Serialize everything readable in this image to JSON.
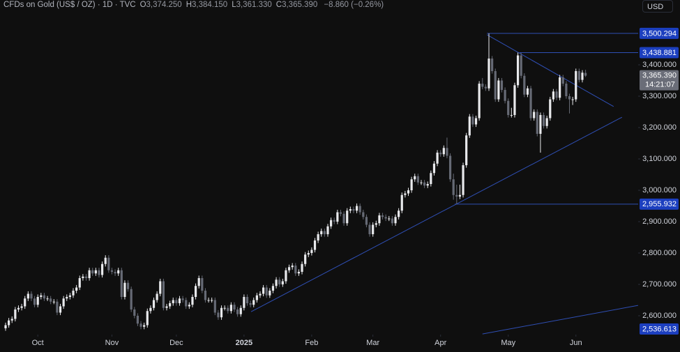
{
  "chart_data": {
    "type": "candlestick",
    "title": "CFDs on Gold (US$ / OZ) · 1D · TVC",
    "legend_values": [
      {
        "key": "O",
        "value": "3,374.250"
      },
      {
        "key": "H",
        "value": "3,384.150"
      },
      {
        "key": "L",
        "value": "3,361.330"
      },
      {
        "key": "C",
        "value": "3,365.390"
      }
    ],
    "change": "−8.860 (−0.26%)",
    "currency": "USD",
    "up_color": "#e8e9ec",
    "down_color": "#666a75",
    "line_color": "#2f4fb5",
    "badge_color": "#1c3fbf",
    "last_badge_color": "#6a6d78",
    "grid": false,
    "xlim": [
      -1.73,
      196.32
    ],
    "ylim": [
      2540,
      3606.7
    ],
    "xticks": [
      {
        "value": 10,
        "label": "Oct"
      },
      {
        "value": 33,
        "label": "Nov"
      },
      {
        "value": 53,
        "label": "Dec"
      },
      {
        "value": 74,
        "label": "2025"
      },
      {
        "value": 95,
        "label": "Feb"
      },
      {
        "value": 114,
        "label": "Mar"
      },
      {
        "value": 135,
        "label": "Apr"
      },
      {
        "value": 156,
        "label": "May"
      },
      {
        "value": 177,
        "label": "Jun"
      }
    ],
    "yticks": [
      {
        "value": 2600,
        "label": "2,600.000"
      },
      {
        "value": 2700,
        "label": "2,700.000"
      },
      {
        "value": 2800,
        "label": "2,800.000"
      },
      {
        "value": 2900,
        "label": "2,900.000"
      },
      {
        "value": 3000,
        "label": "3,000.000"
      },
      {
        "value": 3100,
        "label": "3,100.000"
      },
      {
        "value": 3200,
        "label": "3,200.000"
      },
      {
        "value": 3300,
        "label": "3,300.000"
      },
      {
        "value": 3400,
        "label": "3,400.000"
      }
    ],
    "levels": [
      {
        "value": 3500.294,
        "label": "3,500.294",
        "from": 149.4
      },
      {
        "value": 3438.881,
        "label": "3,438.881",
        "from": 159.5
      },
      {
        "value": 2955.932,
        "label": "2,955.932",
        "from": 139.4
      },
      {
        "value": 2536.613,
        "label": "2,536.613"
      }
    ],
    "last_price": {
      "value": 3365.39,
      "label": "3,365.390",
      "countdown": "14:21:07"
    },
    "trendlines": [
      {
        "points": [
          [
            149.4,
            3496
          ],
          [
            188.7,
            3267
          ]
        ]
      },
      {
        "points": [
          [
            76.2,
            2613
          ],
          [
            191.3,
            3233
          ]
        ]
      },
      {
        "points": [
          [
            148,
            2542
          ],
          [
            196.3,
            2633
          ]
        ]
      }
    ],
    "ohlc": [
      [
        2560,
        2578,
        2552,
        2570
      ],
      [
        2570,
        2593,
        2562,
        2585
      ],
      [
        2585,
        2598,
        2577,
        2590
      ],
      [
        2590,
        2628,
        2582,
        2620
      ],
      [
        2620,
        2633,
        2612,
        2625
      ],
      [
        2625,
        2638,
        2617,
        2630
      ],
      [
        2630,
        2663,
        2622,
        2655
      ],
      [
        2655,
        2678,
        2647,
        2670
      ],
      [
        2670,
        2678,
        2647,
        2655
      ],
      [
        2655,
        2663,
        2627,
        2635
      ],
      [
        2635,
        2668,
        2627,
        2660
      ],
      [
        2660,
        2673,
        2652,
        2665
      ],
      [
        2665,
        2673,
        2647,
        2655
      ],
      [
        2655,
        2663,
        2647,
        2655
      ],
      [
        2655,
        2663,
        2637,
        2645
      ],
      [
        2645,
        2653,
        2637,
        2645
      ],
      [
        2645,
        2653,
        2602,
        2610
      ],
      [
        2610,
        2638,
        2602,
        2630
      ],
      [
        2630,
        2663,
        2622,
        2655
      ],
      [
        2655,
        2668,
        2647,
        2660
      ],
      [
        2660,
        2673,
        2652,
        2665
      ],
      [
        2665,
        2688,
        2657,
        2680
      ],
      [
        2680,
        2698,
        2672,
        2690
      ],
      [
        2690,
        2728,
        2682,
        2720
      ],
      [
        2720,
        2733,
        2712,
        2725
      ],
      [
        2725,
        2733,
        2712,
        2720
      ],
      [
        2720,
        2753,
        2712,
        2745
      ],
      [
        2745,
        2753,
        2727,
        2735
      ],
      [
        2735,
        2753,
        2727,
        2745
      ],
      [
        2745,
        2753,
        2722,
        2730
      ],
      [
        2730,
        2773,
        2722,
        2765
      ],
      [
        2765,
        2793,
        2757,
        2785
      ],
      [
        2785,
        2793,
        2737,
        2745
      ],
      [
        2745,
        2753,
        2732,
        2740
      ],
      [
        2740,
        2748,
        2727,
        2735
      ],
      [
        2735,
        2753,
        2727,
        2745
      ],
      [
        2745,
        2753,
        2652,
        2660
      ],
      [
        2660,
        2713,
        2652,
        2705
      ],
      [
        2705,
        2713,
        2677,
        2685
      ],
      [
        2685,
        2693,
        2612,
        2620
      ],
      [
        2620,
        2628,
        2592,
        2600
      ],
      [
        2600,
        2608,
        2567,
        2575
      ],
      [
        2575,
        2583,
        2557,
        2565
      ],
      [
        2565,
        2578,
        2557,
        2570
      ],
      [
        2570,
        2623,
        2562,
        2615
      ],
      [
        2615,
        2633,
        2607,
        2625
      ],
      [
        2625,
        2658,
        2617,
        2650
      ],
      [
        2650,
        2678,
        2642,
        2670
      ],
      [
        2670,
        2718,
        2662,
        2710
      ],
      [
        2710,
        2718,
        2617,
        2625
      ],
      [
        2625,
        2638,
        2617,
        2630
      ],
      [
        2630,
        2648,
        2622,
        2640
      ],
      [
        2640,
        2658,
        2632,
        2650
      ],
      [
        2650,
        2658,
        2632,
        2640
      ],
      [
        2640,
        2663,
        2632,
        2655
      ],
      [
        2655,
        2663,
        2642,
        2650
      ],
      [
        2650,
        2658,
        2622,
        2630
      ],
      [
        2630,
        2643,
        2622,
        2635
      ],
      [
        2635,
        2668,
        2627,
        2660
      ],
      [
        2660,
        2703,
        2652,
        2695
      ],
      [
        2695,
        2728,
        2687,
        2720
      ],
      [
        2720,
        2728,
        2672,
        2680
      ],
      [
        2680,
        2688,
        2642,
        2650
      ],
      [
        2650,
        2658,
        2642,
        2650
      ],
      [
        2650,
        2658,
        2642,
        2650
      ],
      [
        2650,
        2658,
        2602,
        2610
      ],
      [
        2610,
        2618,
        2587,
        2595
      ],
      [
        2595,
        2633,
        2587,
        2625
      ],
      [
        2625,
        2633,
        2617,
        2625
      ],
      [
        2625,
        2633,
        2607,
        2615
      ],
      [
        2615,
        2643,
        2607,
        2635
      ],
      [
        2635,
        2643,
        2612,
        2620
      ],
      [
        2620,
        2628,
        2597,
        2605
      ],
      [
        2605,
        2633,
        2597,
        2625
      ],
      [
        2625,
        2668,
        2617,
        2660
      ],
      [
        2660,
        2668,
        2632,
        2640
      ],
      [
        2640,
        2648,
        2627,
        2635
      ],
      [
        2635,
        2658,
        2627,
        2650
      ],
      [
        2650,
        2673,
        2642,
        2665
      ],
      [
        2665,
        2678,
        2657,
        2670
      ],
      [
        2670,
        2698,
        2662,
        2690
      ],
      [
        2690,
        2698,
        2657,
        2665
      ],
      [
        2665,
        2688,
        2657,
        2680
      ],
      [
        2680,
        2703,
        2672,
        2695
      ],
      [
        2695,
        2723,
        2687,
        2715
      ],
      [
        2715,
        2723,
        2692,
        2700
      ],
      [
        2700,
        2718,
        2692,
        2710
      ],
      [
        2710,
        2753,
        2702,
        2745
      ],
      [
        2745,
        2763,
        2737,
        2755
      ],
      [
        2755,
        2768,
        2747,
        2760
      ],
      [
        2760,
        2768,
        2727,
        2735
      ],
      [
        2735,
        2748,
        2727,
        2740
      ],
      [
        2740,
        2773,
        2732,
        2765
      ],
      [
        2765,
        2803,
        2757,
        2795
      ],
      [
        2795,
        2808,
        2787,
        2800
      ],
      [
        2800,
        2818,
        2792,
        2810
      ],
      [
        2810,
        2848,
        2802,
        2840
      ],
      [
        2840,
        2868,
        2832,
        2860
      ],
      [
        2860,
        2878,
        2852,
        2870
      ],
      [
        2870,
        2878,
        2852,
        2860
      ],
      [
        2860,
        2893,
        2852,
        2885
      ],
      [
        2885,
        2913,
        2877,
        2905
      ],
      [
        2905,
        2913,
        2892,
        2900
      ],
      [
        2900,
        2938,
        2892,
        2930
      ],
      [
        2930,
        2938,
        2917,
        2925
      ],
      [
        2925,
        2933,
        2887,
        2895
      ],
      [
        2895,
        2943,
        2887,
        2935
      ],
      [
        2935,
        2948,
        2927,
        2940
      ],
      [
        2940,
        2948,
        2927,
        2935
      ],
      [
        2935,
        2958,
        2927,
        2950
      ],
      [
        2950,
        2958,
        2922,
        2930
      ],
      [
        2930,
        2938,
        2907,
        2915
      ],
      [
        2915,
        2923,
        2882,
        2890
      ],
      [
        2890,
        2898,
        2852,
        2860
      ],
      [
        2860,
        2898,
        2852,
        2890
      ],
      [
        2890,
        2903,
        2882,
        2895
      ],
      [
        2895,
        2928,
        2887,
        2920
      ],
      [
        2920,
        2928,
        2907,
        2915
      ],
      [
        2915,
        2923,
        2902,
        2910
      ],
      [
        2910,
        2918,
        2902,
        2910
      ],
      [
        2910,
        2918,
        2887,
        2895
      ],
      [
        2895,
        2923,
        2887,
        2915
      ],
      [
        2915,
        2943,
        2907,
        2935
      ],
      [
        2935,
        2993,
        2927,
        2985
      ],
      [
        2985,
        2998,
        2977,
        2990
      ],
      [
        2990,
        3008,
        2982,
        3000
      ],
      [
        3000,
        3043,
        2992,
        3035
      ],
      [
        3035,
        3053,
        3027,
        3045
      ],
      [
        3045,
        3053,
        3017,
        3025
      ],
      [
        3025,
        3033,
        3017,
        3025
      ],
      [
        3025,
        3033,
        3007,
        3015
      ],
      [
        3015,
        3028,
        3007,
        3020
      ],
      [
        3020,
        3063,
        3012,
        3055
      ],
      [
        3055,
        3093,
        3047,
        3085
      ],
      [
        3085,
        3128,
        3077,
        3120
      ],
      [
        3120,
        3128,
        3107,
        3115
      ],
      [
        3115,
        3143,
        3107,
        3135
      ],
      [
        3135,
        3168,
        3102,
        3110
      ],
      [
        3110,
        3118,
        3027,
        3035
      ],
      [
        3035,
        3053,
        2970,
        2985
      ],
      [
        2985,
        3018,
        2956,
        2980
      ],
      [
        2980,
        3018,
        2972,
        2985
      ],
      [
        2985,
        3088,
        2977,
        3080
      ],
      [
        3080,
        3183,
        3072,
        3175
      ],
      [
        3175,
        3243,
        3167,
        3235
      ],
      [
        3235,
        3243,
        3202,
        3210
      ],
      [
        3210,
        3238,
        3202,
        3230
      ],
      [
        3230,
        3348,
        3222,
        3340
      ],
      [
        3340,
        3358,
        3322,
        3330
      ],
      [
        3330,
        3338,
        3317,
        3325
      ],
      [
        3325,
        3500,
        3317,
        3420
      ],
      [
        3420,
        3428,
        3372,
        3380
      ],
      [
        3380,
        3388,
        3282,
        3290
      ],
      [
        3290,
        3358,
        3282,
        3350
      ],
      [
        3350,
        3358,
        3312,
        3320
      ],
      [
        3320,
        3328,
        3277,
        3285
      ],
      [
        3285,
        3293,
        3232,
        3240
      ],
      [
        3240,
        3263,
        3232,
        3240
      ],
      [
        3240,
        3343,
        3232,
        3335
      ],
      [
        3335,
        3439,
        3327,
        3430
      ],
      [
        3430,
        3438,
        3357,
        3365
      ],
      [
        3365,
        3373,
        3297,
        3305
      ],
      [
        3305,
        3333,
        3297,
        3325
      ],
      [
        3325,
        3333,
        3222,
        3230
      ],
      [
        3230,
        3258,
        3222,
        3250
      ],
      [
        3250,
        3258,
        3172,
        3180
      ],
      [
        3180,
        3248,
        3120,
        3240
      ],
      [
        3240,
        3248,
        3197,
        3205
      ],
      [
        3205,
        3238,
        3197,
        3230
      ],
      [
        3230,
        3298,
        3222,
        3290
      ],
      [
        3290,
        3323,
        3282,
        3315
      ],
      [
        3315,
        3323,
        3287,
        3295
      ],
      [
        3295,
        3368,
        3287,
        3360
      ],
      [
        3360,
        3368,
        3332,
        3340
      ],
      [
        3340,
        3348,
        3292,
        3300
      ],
      [
        3300,
        3308,
        3245,
        3290
      ],
      [
        3290,
        3298,
        3272,
        3290
      ],
      [
        3290,
        3388,
        3282,
        3380
      ],
      [
        3380,
        3388,
        3344,
        3352
      ],
      [
        3352,
        3383,
        3344,
        3375
      ],
      [
        3374.25,
        3384.15,
        3361.33,
        3365.39
      ]
    ]
  }
}
